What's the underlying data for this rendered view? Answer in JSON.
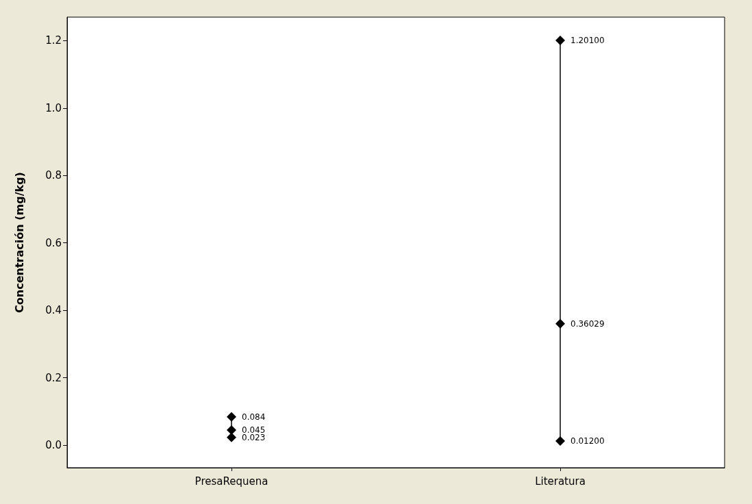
{
  "chart_data": {
    "type": "line",
    "ylabel": "Concentración (mg/kg)",
    "categories": [
      "PresaRequena",
      "Literatura"
    ],
    "series": [
      {
        "color": "#000000",
        "x": [
          "PresaRequena",
          "PresaRequena",
          "PresaRequena"
        ],
        "values": [
          0.023,
          0.045,
          0.084
        ],
        "value_labels": [
          "0.023",
          "0.045",
          "0.084"
        ]
      },
      {
        "color": "#000000",
        "x": [
          "Literatura",
          "Literatura",
          "Literatura"
        ],
        "values": [
          0.012,
          0.36029,
          1.201
        ],
        "value_labels": [
          "0.01200",
          "0.36029",
          "1.20100"
        ]
      }
    ],
    "ylim": [
      -0.067,
      1.27
    ],
    "yticks": [
      {
        "value": 0,
        "label": "0.0"
      },
      {
        "value": 0.2,
        "label": "0.2"
      },
      {
        "value": 0.4,
        "label": "0.4"
      },
      {
        "value": 0.6,
        "label": "0.6"
      },
      {
        "value": 0.8,
        "label": "0.8"
      },
      {
        "value": 1,
        "label": "1.0"
      },
      {
        "value": 1.2,
        "label": "1.2"
      }
    ],
    "grid": false,
    "marker": "diamond",
    "line_style": "solid"
  }
}
